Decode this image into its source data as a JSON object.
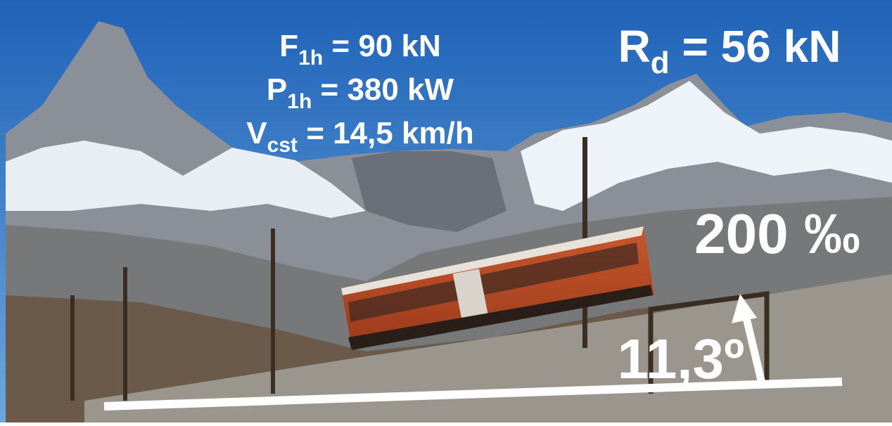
{
  "overlay": {
    "force": {
      "symbol": "F",
      "subscript": "1h",
      "value": " = 90 kN"
    },
    "power": {
      "symbol": "P",
      "subscript": "1h",
      "value": " = 380 kW"
    },
    "speed": {
      "symbol": "V",
      "subscript": "cst",
      "value": " = 14,5 km/h"
    },
    "resistance": {
      "symbol": "R",
      "subscript": "d",
      "value": " = 56 kN"
    },
    "grade": "200 ‰",
    "angle": "11,3º"
  }
}
